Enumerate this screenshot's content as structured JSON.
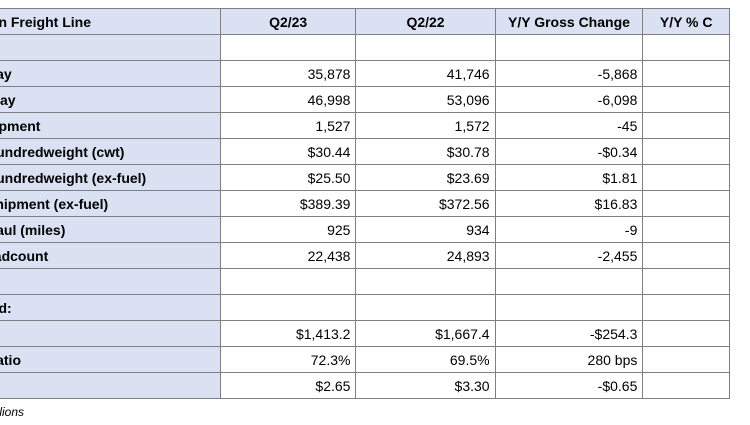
{
  "table": {
    "headers": [
      "ion Freight Line",
      "Q2/23",
      "Q2/22",
      "Y/Y Gross Change",
      "Y/Y % C"
    ],
    "rows": [
      {
        "label": "",
        "values": [
          "",
          "",
          "",
          ""
        ]
      },
      {
        "label": "Day",
        "values": [
          "35,878",
          "41,746",
          "-5,868",
          ""
        ]
      },
      {
        "label": "/Day",
        "values": [
          "46,998",
          "53,096",
          "-6,098",
          ""
        ]
      },
      {
        "label": "hipment",
        "values": [
          "1,527",
          "1,572",
          "-45",
          ""
        ]
      },
      {
        "label": "Hundredweight (cwt)",
        "values": [
          "$30.44",
          "$30.78",
          "-$0.34",
          ""
        ]
      },
      {
        "label": "Hundredweight (ex-fuel)",
        "values": [
          "$25.50",
          "$23.69",
          "$1.81",
          ""
        ]
      },
      {
        "label": "Shipment (ex-fuel)",
        "values": [
          "$389.39",
          "$372.56",
          "$16.83",
          ""
        ]
      },
      {
        "label": "Haul (miles)",
        "values": [
          "925",
          "934",
          "-9",
          ""
        ]
      },
      {
        "label": "eadcount",
        "values": [
          "22,438",
          "24,893",
          "-2,455",
          ""
        ]
      },
      {
        "label": "",
        "values": [
          "",
          "",
          "",
          ""
        ]
      },
      {
        "label": "ted:",
        "values": [
          "",
          "",
          "",
          ""
        ]
      },
      {
        "label": "",
        "values": [
          "$1,413.2",
          "$1,667.4",
          "-$254.3",
          ""
        ]
      },
      {
        "label": "Ratio",
        "values": [
          "72.3%",
          "69.5%",
          "280 bps",
          ""
        ]
      },
      {
        "label": "",
        "values": [
          "$2.65",
          "$3.30",
          "-$0.65",
          ""
        ]
      }
    ]
  },
  "footnote": "illions"
}
